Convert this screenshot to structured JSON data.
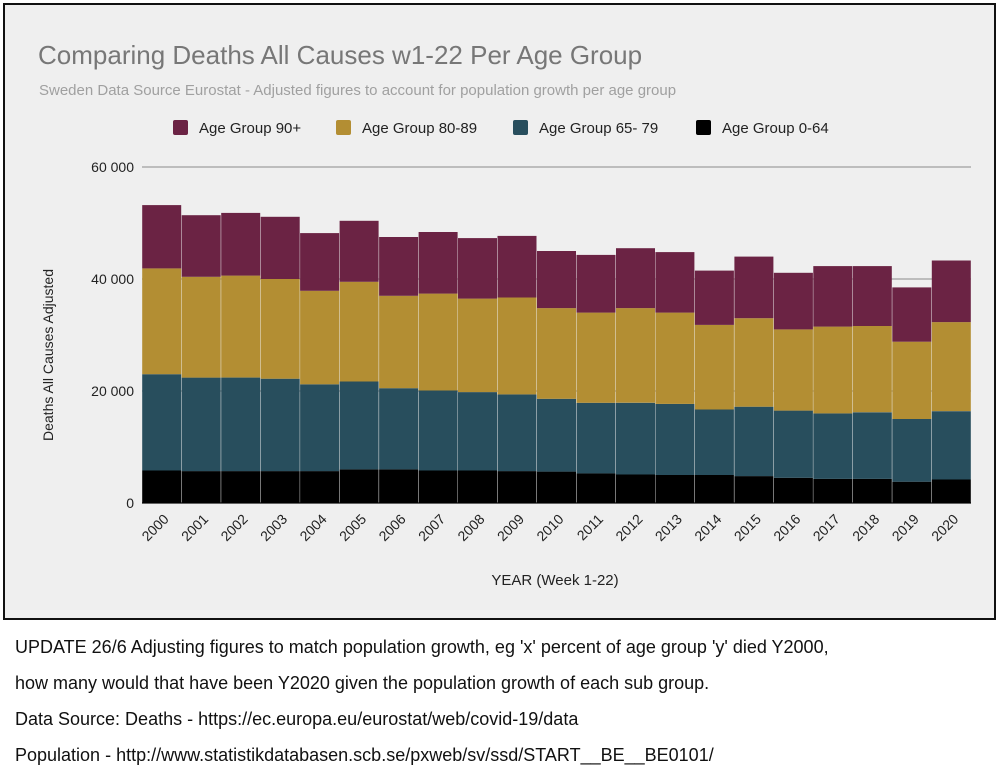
{
  "chart_data": {
    "type": "bar",
    "stacked": true,
    "title": "Comparing Deaths All Causes w1-22 Per Age Group",
    "subtitle": "Sweden Data Source Eurostat - Adjusted figures to account for population growth per age group",
    "xlabel": "YEAR (Week 1-22)",
    "ylabel": "Deaths All Causes Adjusted",
    "ylim": [
      0,
      60000
    ],
    "yticks": [
      0,
      20000,
      40000,
      60000
    ],
    "ytick_labels": [
      "0",
      "20 000",
      "40 000",
      "60 000"
    ],
    "grid": true,
    "legend_position": "top",
    "categories": [
      "2000",
      "2001",
      "2002",
      "2003",
      "2004",
      "2005",
      "2006",
      "2007",
      "2008",
      "2009",
      "2010",
      "2011",
      "2012",
      "2013",
      "2014",
      "2015",
      "2016",
      "2017",
      "2018",
      "2019",
      "2020"
    ],
    "series": [
      {
        "name": "Age Group 0-64",
        "color": "#000000",
        "values": [
          5800,
          5700,
          5700,
          5700,
          5700,
          6000,
          6000,
          5800,
          5800,
          5700,
          5600,
          5300,
          5100,
          5000,
          5000,
          4800,
          4500,
          4300,
          4300,
          3800,
          4200
        ]
      },
      {
        "name": "Age Group 65- 79",
        "color": "#284e5d",
        "values": [
          17200,
          16700,
          16700,
          16500,
          15500,
          15700,
          14500,
          14300,
          14000,
          13700,
          13000,
          12600,
          12800,
          12700,
          11700,
          12400,
          12000,
          11700,
          11900,
          11200,
          12200
        ]
      },
      {
        "name": "Age Group 80-89",
        "color": "#b38e33",
        "values": [
          18900,
          18000,
          18200,
          17800,
          16700,
          17800,
          16500,
          17300,
          16700,
          17300,
          16200,
          16100,
          16900,
          16300,
          15100,
          15800,
          14500,
          15500,
          15400,
          13800,
          15900
        ]
      },
      {
        "name": "Age Group 90+",
        "color": "#6b2344",
        "values": [
          11300,
          11000,
          11200,
          11100,
          10300,
          10900,
          10500,
          11000,
          10800,
          11000,
          10200,
          10300,
          10700,
          10800,
          9700,
          11000,
          10100,
          10800,
          10700,
          9700,
          11000
        ]
      }
    ],
    "legend_order": [
      "Age Group 90+",
      "Age Group 80-89",
      "Age Group 65- 79",
      "Age Group 0-64"
    ]
  },
  "caption": {
    "line1": "UPDATE 26/6 Adjusting figures to match population growth, eg 'x' percent of age group 'y' died Y2000,",
    "line2": "how many would that have been Y2020 given the population growth of each sub group.",
    "line3": "Data Source: Deaths - https://ec.europa.eu/eurostat/web/covid-19/data",
    "line4": "Population - http://www.statistikdatabasen.scb.se/pxweb/sv/ssd/START__BE__BE0101/"
  }
}
